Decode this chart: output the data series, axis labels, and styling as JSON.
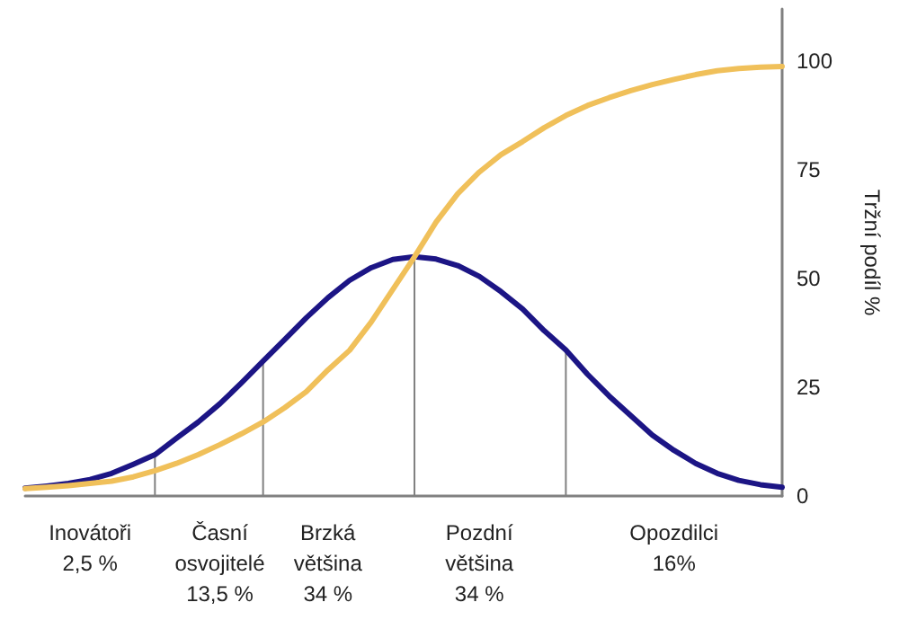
{
  "chart_data": {
    "type": "line",
    "ylabel": "Tržní podíl %",
    "categories": [
      null,
      null,
      null,
      "Inovátoři\n2,5 %",
      null,
      null,
      null,
      null,
      null,
      "Časní\nosvojitelé\n13,5 %",
      null,
      null,
      null,
      null,
      "Brzká\nvětšina\n34 %",
      null,
      null,
      null,
      null,
      null,
      null,
      "Pozdní\nvětšina\n34 %",
      null,
      null,
      null,
      null,
      null,
      null,
      null,
      null,
      "Opozdilci\n16%",
      null,
      null,
      null,
      null,
      null
    ],
    "ylim": [
      0,
      112
    ],
    "yticks": [
      0,
      25,
      50,
      75,
      100
    ],
    "grid": false,
    "marker": "none",
    "line_style": "solid",
    "series": [
      {
        "color": "#808080",
        "type": "bar",
        "values": [
          null,
          null,
          null,
          null,
          null,
          null,
          9.5,
          null,
          null,
          null,
          null,
          31,
          null,
          null,
          null,
          null,
          null,
          null,
          55,
          null,
          null,
          null,
          null,
          null,
          null,
          33.6,
          null,
          null,
          null,
          null,
          null,
          null,
          null,
          null,
          null,
          null
        ]
      },
      {
        "color": "#1c1585",
        "values": [
          1.8,
          2.3,
          2.9,
          3.8,
          5.2,
          7.3,
          9.5,
          13.3,
          17,
          21.2,
          26,
          31,
          36,
          41,
          45.6,
          49.6,
          52.5,
          54.4,
          55,
          54.5,
          53,
          50.5,
          47,
          43,
          38,
          33.6,
          28,
          23,
          18.5,
          14,
          10.5,
          7.5,
          5.2,
          3.6,
          2.6,
          2
        ]
      },
      {
        "color": "#f0c05a",
        "values": [
          1.7,
          2,
          2.4,
          2.9,
          3.4,
          4.4,
          5.8,
          7.5,
          9.5,
          11.8,
          14.3,
          17,
          20.3,
          24,
          29,
          33.5,
          40,
          47.5,
          55,
          63,
          69.5,
          74.5,
          78.5,
          81.5,
          84.7,
          87.5,
          89.8,
          91.6,
          93.2,
          94.6,
          95.8,
          96.9,
          97.8,
          98.3,
          98.6,
          98.8
        ]
      }
    ]
  }
}
